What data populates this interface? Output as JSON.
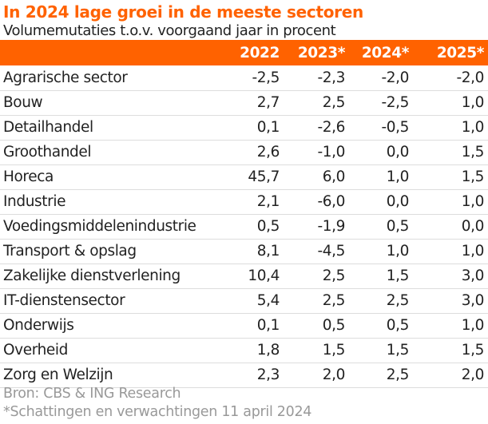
{
  "title": "In 2024 lage groei in de meeste sectoren",
  "subtitle": "Volumemutaties t.o.v. voorgaand jaar in procent",
  "accent_color": "#FF6200",
  "chart_data": {
    "type": "table",
    "title": "In 2024 lage groei in de meeste sectoren",
    "subtitle": "Volumemutaties t.o.v. voorgaand jaar in procent",
    "columns": [
      "",
      "2022",
      "2023*",
      "2024*",
      "2025*"
    ],
    "rows": [
      [
        "Agrarische sector",
        "-2,5",
        "-2,3",
        "-2,0",
        "-2,0"
      ],
      [
        "Bouw",
        "2,7",
        "2,5",
        "-2,5",
        "1,0"
      ],
      [
        "Detailhandel",
        "0,1",
        "-2,6",
        "-0,5",
        "1,0"
      ],
      [
        "Groothandel",
        "2,6",
        "-1,0",
        "0,0",
        "1,5"
      ],
      [
        "Horeca",
        "45,7",
        "6,0",
        "1,0",
        "1,5"
      ],
      [
        "Industrie",
        "2,1",
        "-6,0",
        "0,0",
        "1,0"
      ],
      [
        "Voedingsmiddelenindustrie",
        "0,5",
        "-1,9",
        "0,5",
        "0,0"
      ],
      [
        "Transport & opslag",
        "8,1",
        "-4,5",
        "1,0",
        "1,0"
      ],
      [
        "Zakelijke dienstverlening",
        "10,4",
        "2,5",
        "1,5",
        "3,0"
      ],
      [
        "IT-dienstensector",
        "5,4",
        "2,5",
        "2,5",
        "3,0"
      ],
      [
        "Onderwijs",
        "0,1",
        "0,5",
        "0,5",
        "1,0"
      ],
      [
        "Overheid",
        "1,8",
        "1,5",
        "1,5",
        "1,5"
      ],
      [
        "Zorg en Welzijn",
        "2,3",
        "2,0",
        "2,5",
        "2,0"
      ]
    ]
  },
  "footer": {
    "source": "Bron: CBS & ING Research",
    "note": "*Schattingen en verwachtingen 11 april 2024"
  }
}
